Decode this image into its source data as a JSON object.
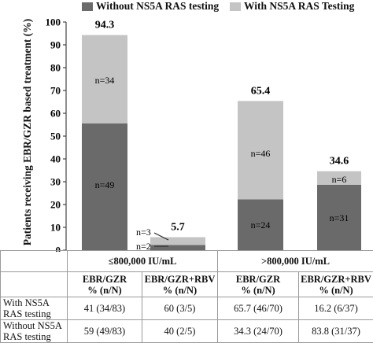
{
  "legend": [
    {
      "label": "Without NS5A RAS testing",
      "color": "#6a6a6a"
    },
    {
      "label": "With NS5A RAS Testing",
      "color": "#c4c4c4"
    }
  ],
  "chart_data": {
    "type": "bar",
    "stacked": true,
    "ylabel": "Patients receiving EBR/GZR based treatment (%)",
    "ylim": [
      0,
      100
    ],
    "yticks": [
      0,
      10,
      20,
      30,
      40,
      50,
      60,
      70,
      80,
      90,
      100
    ],
    "grid": false,
    "legend_position": "top",
    "series_colors": {
      "without": "#6a6a6a",
      "with": "#c4c4c4"
    },
    "bars": [
      {
        "without": 55.6,
        "with": 38.7,
        "total_label": "94.3",
        "without_label": "n=49",
        "with_label": "n=34"
      },
      {
        "without": 2.3,
        "with": 3.4,
        "total_label": "5.7",
        "without_label": "n=2",
        "with_label": "n=3"
      },
      {
        "without": 22.3,
        "with": 43.1,
        "total_label": "65.4",
        "without_label": "n=24",
        "with_label": "n=46"
      },
      {
        "without": 28.7,
        "with": 5.9,
        "total_label": "34.6",
        "without_label": "n=31",
        "with_label": "n=6"
      }
    ]
  },
  "table": {
    "groups": [
      "≤800,000 IU/mL",
      ">800,000 IU/mL"
    ],
    "columns": [
      "EBR/GZR\n% (n/N)",
      "EBR/GZR+RBV\n% (n/N)",
      "EBR/GZR\n% (n/N)",
      "EBR/GZR+RBV\n% (n/N)"
    ],
    "rows": [
      {
        "label": "With NS5A RAS testing",
        "values": [
          "41 (34/83)",
          "60 (3/5)",
          "65.7 (46/70)",
          "16.2 (6/37)"
        ]
      },
      {
        "label": "Without NS5A RAS testing",
        "values": [
          "59 (49/83)",
          "40 (2/5)",
          "34.3 (24/70)",
          "83.8 (31/37)"
        ]
      }
    ]
  }
}
